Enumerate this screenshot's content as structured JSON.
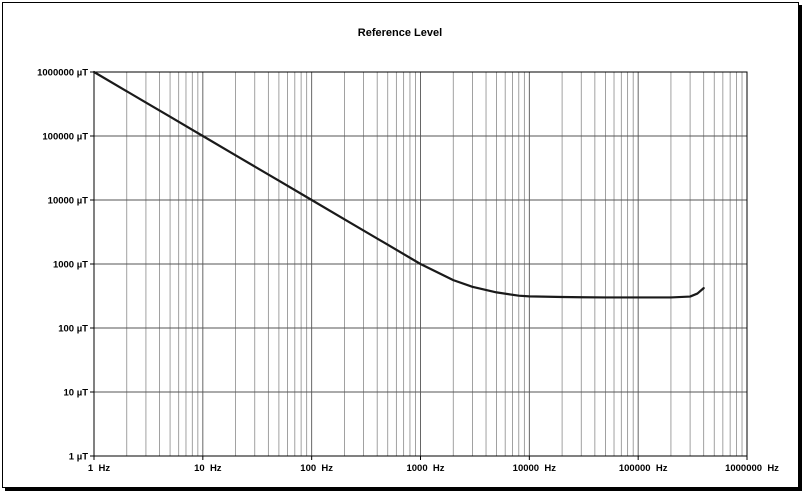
{
  "chart_data": {
    "type": "line",
    "title": "Reference Level",
    "x_scale": "log",
    "y_scale": "log",
    "xlim": [
      1,
      1000000
    ],
    "ylim": [
      1,
      1000000
    ],
    "grid": true,
    "x_tick_values": [
      1,
      10,
      100,
      1000,
      10000,
      100000,
      1000000
    ],
    "x_tick_labels": [
      "1  Hz",
      "10  Hz",
      "100  Hz",
      "1000  Hz",
      "10000  Hz",
      "100000  Hz",
      "1000000  Hz"
    ],
    "y_tick_values": [
      1,
      10,
      100,
      1000,
      10000,
      100000,
      1000000
    ],
    "y_tick_labels": [
      "1 µT",
      "10 µT",
      "100 µT",
      "1000 µT",
      "10000 µT",
      "100000 µT",
      "1000000 µT"
    ],
    "series": [
      {
        "color": "#1a1a1a",
        "points": [
          [
            1,
            1000000
          ],
          [
            2,
            500000
          ],
          [
            3,
            333333
          ],
          [
            5,
            200000
          ],
          [
            8,
            125000
          ],
          [
            10,
            100000
          ],
          [
            20,
            50000
          ],
          [
            50,
            20000
          ],
          [
            100,
            10000
          ],
          [
            200,
            5000
          ],
          [
            500,
            2000
          ],
          [
            1000,
            1000
          ],
          [
            2000,
            560
          ],
          [
            3000,
            440
          ],
          [
            5000,
            360
          ],
          [
            8000,
            320
          ],
          [
            10000,
            312
          ],
          [
            20000,
            305
          ],
          [
            30000,
            302
          ],
          [
            50000,
            300
          ],
          [
            100000,
            300
          ],
          [
            200000,
            300
          ],
          [
            300000,
            310
          ],
          [
            350000,
            345
          ],
          [
            400000,
            420
          ]
        ]
      }
    ]
  }
}
